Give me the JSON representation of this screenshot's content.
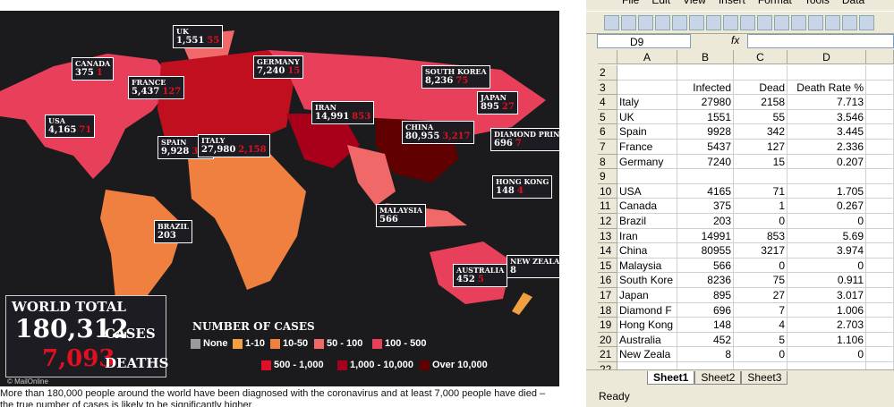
{
  "map": {
    "labels": [
      {
        "name": "CANADA",
        "cases": "375",
        "deaths": "1"
      },
      {
        "name": "UK",
        "cases": "1,551",
        "deaths": "55"
      },
      {
        "name": "FRANCE",
        "cases": "5,437",
        "deaths": "127"
      },
      {
        "name": "GERMANY",
        "cases": "7,240",
        "deaths": "15"
      },
      {
        "name": "USA",
        "cases": "4,165",
        "deaths": "71"
      },
      {
        "name": "SPAIN",
        "cases": "9,928",
        "deaths": "342"
      },
      {
        "name": "ITALY",
        "cases": "27,980",
        "deaths": "2,158"
      },
      {
        "name": "IRAN",
        "cases": "14,991",
        "deaths": "853"
      },
      {
        "name": "CHINA",
        "cases": "80,955",
        "deaths": "3,217"
      },
      {
        "name": "SOUTH KOREA",
        "cases": "8,236",
        "deaths": "75"
      },
      {
        "name": "JAPAN",
        "cases": "895",
        "deaths": "27"
      },
      {
        "name": "DIAMOND PRINCESS",
        "cases": "696",
        "deaths": "7"
      },
      {
        "name": "HONG KONG",
        "cases": "148",
        "deaths": "4"
      },
      {
        "name": "MALAYSIA",
        "cases": "566"
      },
      {
        "name": "BRAZIL",
        "cases": "203"
      },
      {
        "name": "AUSTRALIA",
        "cases": "452",
        "deaths": "5"
      },
      {
        "name": "NEW ZEALAND",
        "cases": "8"
      }
    ],
    "world_total": {
      "title": "WORLD TOTAL",
      "cases": "180,312",
      "cases_label": "CASES",
      "deaths": "7,093",
      "deaths_label": "DEATHS"
    },
    "legend": {
      "title": "NUMBER OF CASES",
      "items": [
        {
          "label": "None",
          "color": "#9a9a9a"
        },
        {
          "label": "1-10",
          "color": "#f0a040"
        },
        {
          "label": "10-50",
          "color": "#f08040"
        },
        {
          "label": "50 - 100",
          "color": "#f06868"
        },
        {
          "label": "100 - 500",
          "color": "#e8405a"
        },
        {
          "label": "500 - 1,000",
          "color": "#e0102a"
        },
        {
          "label": "1,000 - 10,000",
          "color": "#a8001a"
        },
        {
          "label": "Over 10,000",
          "color": "#600000"
        }
      ]
    },
    "credit": "© MailOnline"
  },
  "caption": "More than 180,000 people around the world have been diagnosed with the coronavirus and at least 7,000 people have died – the true number of cases is likely to be significantly higher",
  "spreadsheet": {
    "menu": [
      "File",
      "Edit",
      "View",
      "Insert",
      "Format",
      "Tools",
      "Data"
    ],
    "name_box": "D9",
    "formula_icon": "fx",
    "columns": [
      "A",
      "B",
      "C",
      "D"
    ],
    "rows": [
      {
        "number": 2
      },
      {
        "number": 3,
        "B": "Infected",
        "C": "Dead",
        "D": "Death Rate %"
      },
      {
        "number": 4,
        "A": "Italy",
        "B": 27980,
        "C": 2158,
        "D": 7.713
      },
      {
        "number": 5,
        "A": "UK",
        "B": 1551,
        "C": 55,
        "D": 3.546
      },
      {
        "number": 6,
        "A": "Spain",
        "B": 9928,
        "C": 342,
        "D": 3.445
      },
      {
        "number": 7,
        "A": "France",
        "B": 5437,
        "C": 127,
        "D": 2.336
      },
      {
        "number": 8,
        "A": "Germany",
        "B": 7240,
        "C": 15,
        "D": 0.207
      },
      {
        "number": 9
      },
      {
        "number": 10,
        "A": "USA",
        "B": 4165,
        "C": 71,
        "D": 1.705
      },
      {
        "number": 11,
        "A": "Canada",
        "B": 375,
        "C": 1,
        "D": 0.267
      },
      {
        "number": 12,
        "A": "Brazil",
        "B": 203,
        "C": 0,
        "D": 0
      },
      {
        "number": 13,
        "A": "Iran",
        "B": 14991,
        "C": 853,
        "D": 5.69
      },
      {
        "number": 14,
        "A": "China",
        "B": 80955,
        "C": 3217,
        "D": 3.974
      },
      {
        "number": 15,
        "A": "Malaysia",
        "B": 566,
        "C": 0,
        "D": 0
      },
      {
        "number": 16,
        "A": "South Kore",
        "B": 8236,
        "C": 75,
        "D": 0.911
      },
      {
        "number": 17,
        "A": "Japan",
        "B": 895,
        "C": 27,
        "D": 3.017
      },
      {
        "number": 18,
        "A": "Diamond F",
        "B": 696,
        "C": 7,
        "D": 1.006
      },
      {
        "number": 19,
        "A": "Hong Kong",
        "B": 148,
        "C": 4,
        "D": 2.703
      },
      {
        "number": 20,
        "A": "Australia",
        "B": 452,
        "C": 5,
        "D": 1.106
      },
      {
        "number": 21,
        "A": "New Zeala",
        "B": 8,
        "C": 0,
        "D": 0
      },
      {
        "number": 22
      }
    ],
    "tabs": [
      "Sheet1",
      "Sheet2",
      "Sheet3"
    ],
    "status": "Ready"
  }
}
